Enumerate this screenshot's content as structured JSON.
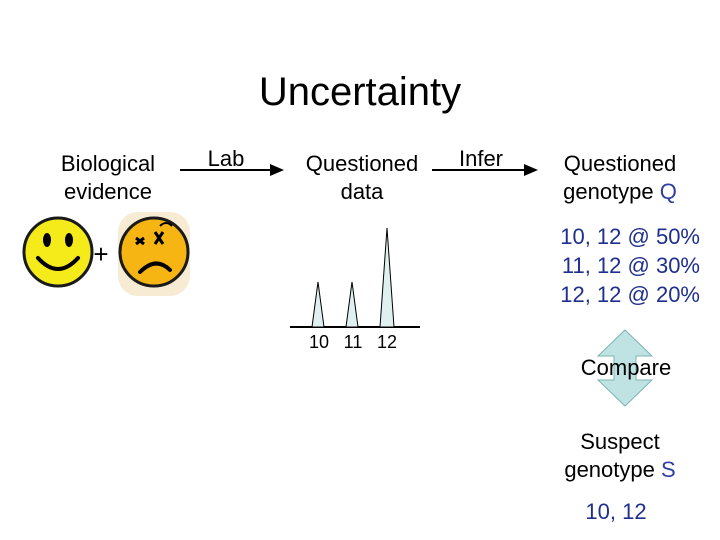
{
  "title": "Uncertainty",
  "biological_evidence": [
    "Biological",
    "evidence"
  ],
  "lab_label": "Lab",
  "questioned_data": [
    "Questioned",
    "data"
  ],
  "infer_label": "Infer",
  "questioned_genotype": {
    "line1": "Questioned",
    "line2_text": "genotype ",
    "line2_letter": "Q"
  },
  "genotype_probs": [
    "10, 12 @ 50%",
    "11, 12 @ 30%",
    "12, 12 @ 20%"
  ],
  "plus_sign": "+",
  "peak_labels": [
    "10",
    "11",
    "12"
  ],
  "compare_label": "Compare",
  "suspect_genotype": {
    "line1": "Suspect",
    "line2_text": "genotype ",
    "line2_letter": "S"
  },
  "suspect_value": "10, 12",
  "colors": {
    "arrow": "#000000",
    "peak_fill": "#dff0f0",
    "compare_arrow_fill": "#bfe3e3",
    "smiley_yellow": "#f5ea1a",
    "text_blue": "#1f2f8f"
  },
  "icons": [
    "happy-face-icon",
    "sad-face-icon"
  ]
}
